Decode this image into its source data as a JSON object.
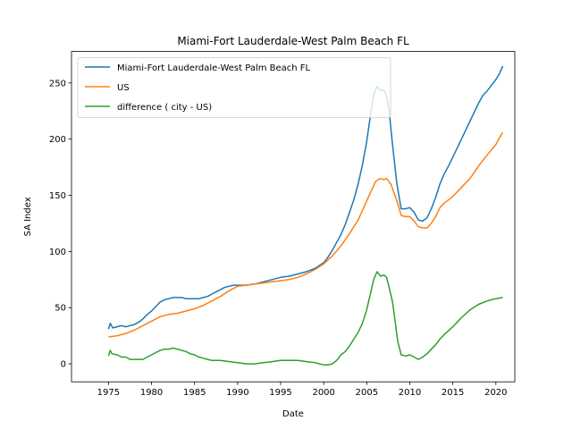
{
  "chart_data": {
    "type": "line",
    "title": "Miami-Fort Lauderdale-West Palm Beach FL",
    "xlabel": "Date",
    "ylabel": "SA Index",
    "xlim": [
      1970.7,
      2022.2
    ],
    "ylim": [
      -16,
      278
    ],
    "xticks": [
      1975,
      1980,
      1985,
      1990,
      1995,
      2000,
      2005,
      2010,
      2015,
      2020
    ],
    "yticks": [
      0,
      50,
      100,
      150,
      200,
      250
    ],
    "grid": false,
    "legend_position": "top-left",
    "series": [
      {
        "name": "Miami-Fort Lauderdale-West Palm Beach FL",
        "color": "#1f77b4",
        "points": [
          [
            1975.0,
            31
          ],
          [
            1975.2,
            36
          ],
          [
            1975.5,
            32
          ],
          [
            1976.0,
            33
          ],
          [
            1976.5,
            34
          ],
          [
            1977.0,
            33
          ],
          [
            1977.5,
            34
          ],
          [
            1978.0,
            35
          ],
          [
            1978.5,
            37
          ],
          [
            1979.0,
            40
          ],
          [
            1979.5,
            44
          ],
          [
            1980.0,
            47
          ],
          [
            1980.5,
            51
          ],
          [
            1981.0,
            55
          ],
          [
            1981.5,
            57
          ],
          [
            1982.0,
            58
          ],
          [
            1982.5,
            59
          ],
          [
            1983.0,
            59
          ],
          [
            1983.5,
            59
          ],
          [
            1984.0,
            58
          ],
          [
            1984.5,
            58
          ],
          [
            1985.0,
            58
          ],
          [
            1985.5,
            58
          ],
          [
            1986.0,
            59
          ],
          [
            1986.5,
            60
          ],
          [
            1987.0,
            62
          ],
          [
            1987.5,
            64
          ],
          [
            1988.0,
            66
          ],
          [
            1988.5,
            68
          ],
          [
            1989.0,
            69
          ],
          [
            1989.5,
            70
          ],
          [
            1990.0,
            70
          ],
          [
            1991.0,
            70
          ],
          [
            1992.0,
            71
          ],
          [
            1993.0,
            73
          ],
          [
            1994.0,
            75
          ],
          [
            1995.0,
            77
          ],
          [
            1996.0,
            78
          ],
          [
            1997.0,
            80
          ],
          [
            1998.0,
            82
          ],
          [
            1999.0,
            85
          ],
          [
            2000.0,
            90
          ],
          [
            2000.5,
            95
          ],
          [
            2001.0,
            101
          ],
          [
            2001.5,
            108
          ],
          [
            2002.0,
            115
          ],
          [
            2002.5,
            124
          ],
          [
            2003.0,
            135
          ],
          [
            2003.5,
            146
          ],
          [
            2004.0,
            160
          ],
          [
            2004.5,
            177
          ],
          [
            2005.0,
            198
          ],
          [
            2005.5,
            225
          ],
          [
            2005.8,
            240
          ],
          [
            2006.2,
            247
          ],
          [
            2006.6,
            243
          ],
          [
            2007.0,
            244
          ],
          [
            2007.3,
            238
          ],
          [
            2007.6,
            225
          ],
          [
            2008.0,
            195
          ],
          [
            2008.5,
            160
          ],
          [
            2009.0,
            138
          ],
          [
            2009.5,
            138
          ],
          [
            2010.0,
            139
          ],
          [
            2010.5,
            135
          ],
          [
            2011.0,
            128
          ],
          [
            2011.5,
            127
          ],
          [
            2012.0,
            130
          ],
          [
            2012.5,
            138
          ],
          [
            2013.0,
            148
          ],
          [
            2013.5,
            160
          ],
          [
            2014.0,
            169
          ],
          [
            2014.5,
            176
          ],
          [
            2015.0,
            184
          ],
          [
            2015.5,
            192
          ],
          [
            2016.0,
            200
          ],
          [
            2016.5,
            208
          ],
          [
            2017.0,
            216
          ],
          [
            2017.5,
            224
          ],
          [
            2018.0,
            232
          ],
          [
            2018.5,
            239
          ],
          [
            2019.0,
            243
          ],
          [
            2019.5,
            248
          ],
          [
            2020.0,
            253
          ],
          [
            2020.4,
            258
          ],
          [
            2020.8,
            265
          ]
        ]
      },
      {
        "name": "US",
        "color": "#ff7f0e",
        "points": [
          [
            1975.0,
            24
          ],
          [
            1976.0,
            25
          ],
          [
            1977.0,
            27
          ],
          [
            1978.0,
            30
          ],
          [
            1979.0,
            34
          ],
          [
            1980.0,
            38
          ],
          [
            1981.0,
            42
          ],
          [
            1982.0,
            44
          ],
          [
            1983.0,
            45
          ],
          [
            1984.0,
            47
          ],
          [
            1985.0,
            49
          ],
          [
            1986.0,
            52
          ],
          [
            1987.0,
            56
          ],
          [
            1988.0,
            60
          ],
          [
            1989.0,
            65
          ],
          [
            1990.0,
            69
          ],
          [
            1991.0,
            70
          ],
          [
            1992.0,
            71
          ],
          [
            1993.0,
            72
          ],
          [
            1994.0,
            73
          ],
          [
            1995.0,
            74
          ],
          [
            1996.0,
            75
          ],
          [
            1997.0,
            77
          ],
          [
            1998.0,
            80
          ],
          [
            1999.0,
            84
          ],
          [
            2000.0,
            89
          ],
          [
            2001.0,
            96
          ],
          [
            2002.0,
            105
          ],
          [
            2003.0,
            116
          ],
          [
            2004.0,
            128
          ],
          [
            2005.0,
            145
          ],
          [
            2006.0,
            162
          ],
          [
            2006.5,
            165
          ],
          [
            2007.0,
            164
          ],
          [
            2007.3,
            165
          ],
          [
            2007.8,
            160
          ],
          [
            2008.5,
            145
          ],
          [
            2009.0,
            132
          ],
          [
            2009.5,
            131
          ],
          [
            2010.0,
            131
          ],
          [
            2010.5,
            127
          ],
          [
            2011.0,
            122
          ],
          [
            2011.5,
            121
          ],
          [
            2012.0,
            121
          ],
          [
            2012.5,
            125
          ],
          [
            2013.0,
            131
          ],
          [
            2013.5,
            139
          ],
          [
            2014.0,
            143
          ],
          [
            2015.0,
            149
          ],
          [
            2016.0,
            157
          ],
          [
            2017.0,
            165
          ],
          [
            2018.0,
            176
          ],
          [
            2019.0,
            186
          ],
          [
            2020.0,
            195
          ],
          [
            2020.4,
            201
          ],
          [
            2020.8,
            206
          ]
        ]
      },
      {
        "name": "difference ( city - US)",
        "color": "#2ca02c",
        "points": [
          [
            1975.0,
            7
          ],
          [
            1975.2,
            12
          ],
          [
            1975.4,
            9
          ],
          [
            1976.0,
            8
          ],
          [
            1976.5,
            6
          ],
          [
            1977.0,
            6
          ],
          [
            1977.5,
            4
          ],
          [
            1978.0,
            4
          ],
          [
            1978.5,
            4
          ],
          [
            1979.0,
            4
          ],
          [
            1979.5,
            6
          ],
          [
            1980.0,
            8
          ],
          [
            1980.5,
            10
          ],
          [
            1981.0,
            12
          ],
          [
            1981.5,
            13
          ],
          [
            1982.0,
            13
          ],
          [
            1982.5,
            14
          ],
          [
            1983.0,
            13
          ],
          [
            1983.5,
            12
          ],
          [
            1984.0,
            11
          ],
          [
            1984.5,
            9
          ],
          [
            1985.0,
            8
          ],
          [
            1985.5,
            6
          ],
          [
            1986.0,
            5
          ],
          [
            1986.5,
            4
          ],
          [
            1987.0,
            3
          ],
          [
            1988.0,
            3
          ],
          [
            1989.0,
            2
          ],
          [
            1990.0,
            1
          ],
          [
            1991.0,
            0
          ],
          [
            1992.0,
            0
          ],
          [
            1993.0,
            1
          ],
          [
            1994.0,
            2
          ],
          [
            1995.0,
            3
          ],
          [
            1996.0,
            3
          ],
          [
            1997.0,
            3
          ],
          [
            1998.0,
            2
          ],
          [
            1999.0,
            1
          ],
          [
            1999.5,
            0
          ],
          [
            2000.0,
            -1
          ],
          [
            2000.5,
            -1
          ],
          [
            2001.0,
            0
          ],
          [
            2001.5,
            3
          ],
          [
            2002.0,
            8
          ],
          [
            2002.5,
            11
          ],
          [
            2003.0,
            16
          ],
          [
            2003.5,
            22
          ],
          [
            2004.0,
            28
          ],
          [
            2004.5,
            36
          ],
          [
            2005.0,
            48
          ],
          [
            2005.5,
            65
          ],
          [
            2005.8,
            75
          ],
          [
            2006.2,
            82
          ],
          [
            2006.6,
            78
          ],
          [
            2007.0,
            79
          ],
          [
            2007.3,
            77
          ],
          [
            2007.6,
            68
          ],
          [
            2008.0,
            55
          ],
          [
            2008.3,
            38
          ],
          [
            2008.6,
            20
          ],
          [
            2009.0,
            8
          ],
          [
            2009.5,
            7
          ],
          [
            2010.0,
            8
          ],
          [
            2010.5,
            6
          ],
          [
            2011.0,
            4
          ],
          [
            2011.5,
            6
          ],
          [
            2012.0,
            9
          ],
          [
            2012.5,
            13
          ],
          [
            2013.0,
            17
          ],
          [
            2013.5,
            22
          ],
          [
            2014.0,
            26
          ],
          [
            2015.0,
            33
          ],
          [
            2016.0,
            41
          ],
          [
            2017.0,
            48
          ],
          [
            2018.0,
            53
          ],
          [
            2019.0,
            56
          ],
          [
            2019.5,
            57
          ],
          [
            2020.0,
            58
          ],
          [
            2020.8,
            59
          ]
        ]
      }
    ]
  }
}
